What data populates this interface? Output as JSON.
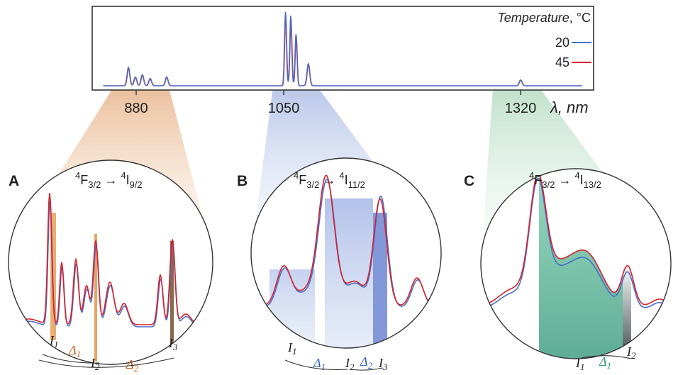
{
  "colors": {
    "series_20": "#4a6fc9",
    "series_45": "#d8222c",
    "orange_cone": "#e8a26a",
    "blue_cone": "#7f98d6",
    "green_cone": "#7ebf96",
    "orange_band": "#e39a4f",
    "blue_band": "#6d86d2",
    "green_band": "#2f9a78",
    "dark_band": "#7a5a3a"
  },
  "legend": {
    "title_italic": "Temperature",
    "title_unit": ", °C",
    "entries": [
      "20",
      "45"
    ]
  },
  "axis": {
    "unit": "λ, nm",
    "ticks": [
      "880",
      "1050",
      "1320"
    ]
  },
  "panels": [
    {
      "letter": "A",
      "transition": {
        "l1": "4",
        "f": "F",
        "s1": "3/2",
        "arrow": " → ",
        "l2": "4",
        "i": "I",
        "s2": "9/2"
      },
      "labels": {
        "I1": "I",
        "I1s": "1",
        "D1": "Δ",
        "D1s": "1",
        "I2": "I",
        "I2s": "2",
        "D2": "Δ",
        "D2s": "2",
        "I3": "I",
        "I3s": "3"
      }
    },
    {
      "letter": "B",
      "transition": {
        "l1": "4",
        "f": "F",
        "s1": "3/2",
        "arrow": " → ",
        "l2": "4",
        "i": "I",
        "s2": "11/2"
      },
      "labels": {
        "I1": "I",
        "I1s": "1",
        "D1": "Δ",
        "D1s": "1",
        "I2": "I",
        "I2s": "2",
        "D2": "Δ",
        "D2s": "2",
        "I3": "I",
        "I3s": "3"
      }
    },
    {
      "letter": "C",
      "transition": {
        "l1": "4",
        "f": "F",
        "s1": "3/2",
        "arrow": " → ",
        "l2": "4",
        "i": "I",
        "s2": "13/2"
      },
      "labels": {
        "I1": "I",
        "I1s": "1",
        "D1": "Δ",
        "D1s": "1",
        "I2": "I",
        "I2s": "2"
      }
    }
  ],
  "chart_data": {
    "type": "line",
    "title": "",
    "xlabel": "λ, nm",
    "ylabel": "",
    "x_ticks": [
      880,
      1050,
      1320
    ],
    "series_names": [
      "20",
      "45"
    ],
    "overview_peaks": [
      {
        "x": 871,
        "y": 0.25
      },
      {
        "x": 879,
        "y": 0.12
      },
      {
        "x": 887,
        "y": 0.15
      },
      {
        "x": 896,
        "y": 0.1
      },
      {
        "x": 915,
        "y": 0.12
      },
      {
        "x": 1052,
        "y": 1.0
      },
      {
        "x": 1058,
        "y": 0.95
      },
      {
        "x": 1064,
        "y": 0.7
      },
      {
        "x": 1078,
        "y": 0.3
      },
      {
        "x": 1320,
        "y": 0.08
      }
    ],
    "legend_position": "top-right"
  }
}
